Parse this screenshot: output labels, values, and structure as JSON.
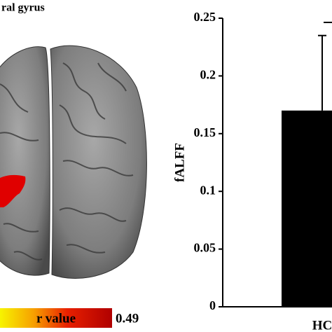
{
  "brain_panel": {
    "title": "ral gyrus",
    "colorbar_label": "r value",
    "colorbar_max": 0.49
  },
  "chart_data": {
    "type": "bar",
    "y_label": "fALFF",
    "categories": [
      "HC"
    ],
    "values": [
      0.17
    ],
    "errors": [
      0.065
    ],
    "color": "#000000",
    "ylim": [
      0,
      0.25
    ],
    "yticks": [
      0,
      0.05,
      0.1,
      0.15,
      0.2,
      0.25
    ],
    "grid": false
  }
}
